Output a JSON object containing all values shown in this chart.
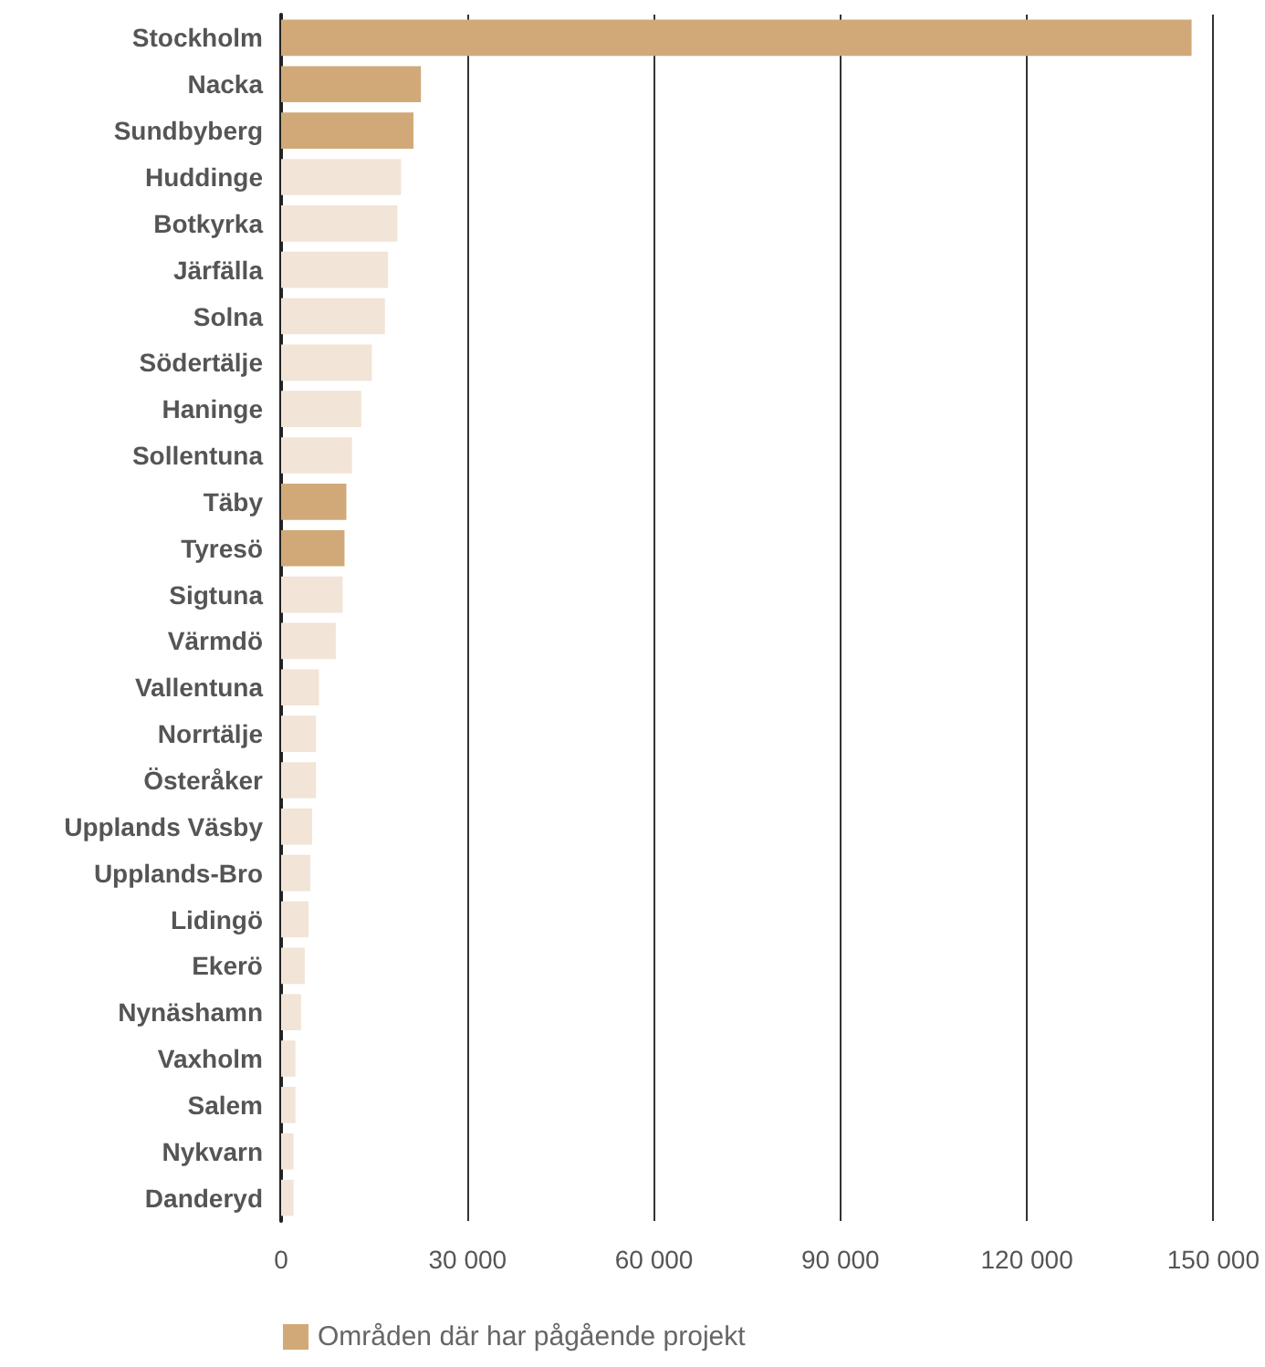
{
  "chart_data": {
    "type": "bar",
    "orientation": "horizontal",
    "categories": [
      "Stockholm",
      "Nacka",
      "Sundbyberg",
      "Huddinge",
      "Botkyrka",
      "Järfälla",
      "Solna",
      "Södertälje",
      "Haninge",
      "Sollentuna",
      "Täby",
      "Tyresö",
      "Sigtuna",
      "Värmdö",
      "Vallentuna",
      "Norrtälje",
      "Österåker",
      "Upplands Väsby",
      "Upplands-Bro",
      "Lidingö",
      "Ekerö",
      "Nynäshamn",
      "Vaxholm",
      "Salem",
      "Nykvarn",
      "Danderyd"
    ],
    "series": [
      {
        "name": "Områden där har pågående projekt",
        "color": "#d1a978",
        "values": [
          146500,
          22500,
          21300,
          19300,
          18700,
          17200,
          16700,
          14600,
          12900,
          11400,
          10500,
          10200,
          9900,
          8800,
          6100,
          5600,
          5600,
          5000,
          4700,
          4400,
          3800,
          3200,
          2300,
          2300,
          2000,
          2000
        ],
        "colors": [
          "#d1a978",
          "#d1a978",
          "#d1a978",
          "#f2e4d6",
          "#f2e4d6",
          "#f2e4d6",
          "#f2e4d6",
          "#f2e4d6",
          "#f2e4d6",
          "#f2e4d6",
          "#d1a978",
          "#d1a978",
          "#f2e4d6",
          "#f2e4d6",
          "#f2e4d6",
          "#f2e4d6",
          "#f2e4d6",
          "#f2e4d6",
          "#f2e4d6",
          "#f2e4d6",
          "#f2e4d6",
          "#f2e4d6",
          "#f2e4d6",
          "#f2e4d6",
          "#f2e4d6",
          "#f2e4d6"
        ]
      }
    ],
    "xlim": [
      0,
      150000
    ],
    "xticks": [
      0,
      {
        "value": 30000,
        "label": "30 000"
      },
      {
        "value": 60000,
        "label": "60 000"
      },
      {
        "value": 90000,
        "label": "90 000"
      },
      {
        "value": 120000,
        "label": "120 000"
      },
      {
        "value": 150000,
        "label": "150 000"
      }
    ],
    "grid": "x",
    "legend": "bottom"
  }
}
